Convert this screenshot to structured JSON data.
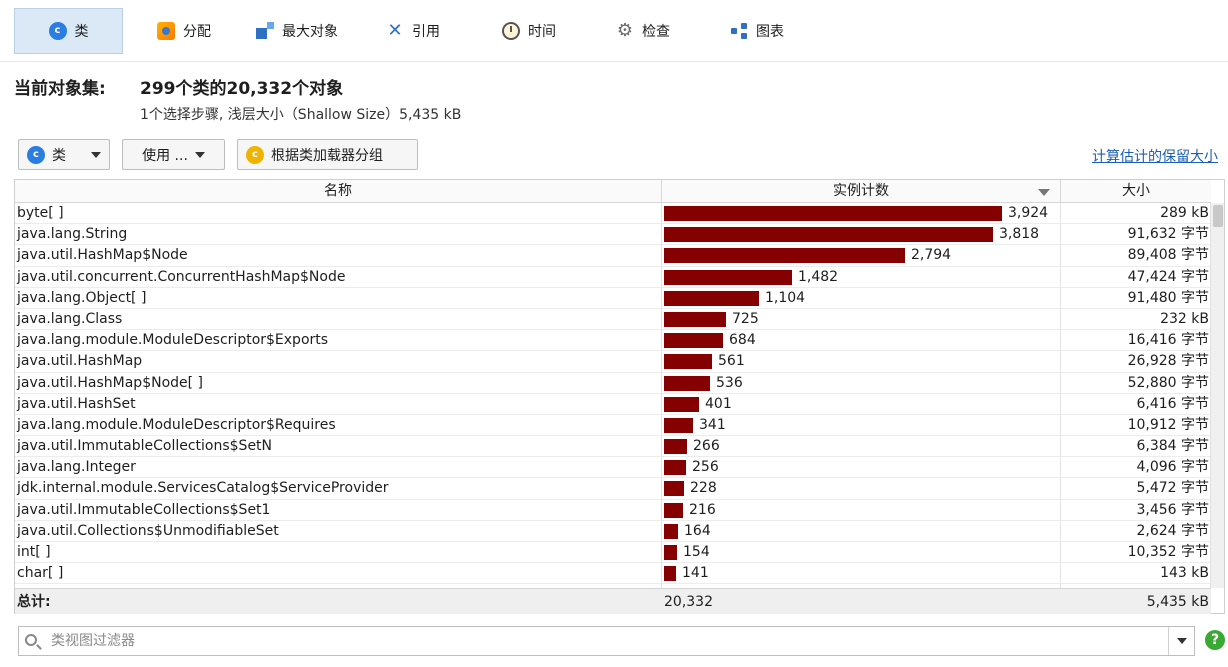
{
  "toolbar": {
    "items": [
      {
        "label": "类",
        "icon": "class-icon"
      },
      {
        "label": "分配",
        "icon": "allocation-icon"
      },
      {
        "label": "最大对象",
        "icon": "biggest-objects-icon"
      },
      {
        "label": "引用",
        "icon": "references-icon"
      },
      {
        "label": "时间",
        "icon": "clock-icon"
      },
      {
        "label": "检查",
        "icon": "gear-icon"
      },
      {
        "label": "图表",
        "icon": "graph-icon"
      }
    ],
    "active": "类"
  },
  "summary": {
    "label": "当前对象集:",
    "value": "299个类的20,332个对象",
    "sub": "1个选择步骤, 浅层大小（Shallow Size）5,435 kB"
  },
  "controls": {
    "view_select": "类",
    "use_button": "使用 ...",
    "group_button": "根据类加载器分组",
    "compute_link": "计算估计的保留大小"
  },
  "table": {
    "columns": [
      "名称",
      "实例计数",
      "大小"
    ],
    "sort_column": "实例计数",
    "sort_direction": "desc",
    "max_count": 3924,
    "rows": [
      {
        "name": "byte[ ]",
        "count": 3924,
        "count_text": "3,924",
        "size": "289 kB"
      },
      {
        "name": "java.lang.String",
        "count": 3818,
        "count_text": "3,818",
        "size": "91,632 字节"
      },
      {
        "name": "java.util.HashMap$Node",
        "count": 2794,
        "count_text": "2,794",
        "size": "89,408 字节"
      },
      {
        "name": "java.util.concurrent.ConcurrentHashMap$Node",
        "count": 1482,
        "count_text": "1,482",
        "size": "47,424 字节"
      },
      {
        "name": "java.lang.Object[ ]",
        "count": 1104,
        "count_text": "1,104",
        "size": "91,480 字节"
      },
      {
        "name": "java.lang.Class",
        "count": 725,
        "count_text": "725",
        "size": "232 kB"
      },
      {
        "name": "java.lang.module.ModuleDescriptor$Exports",
        "count": 684,
        "count_text": "684",
        "size": "16,416 字节"
      },
      {
        "name": "java.util.HashMap",
        "count": 561,
        "count_text": "561",
        "size": "26,928 字节"
      },
      {
        "name": "java.util.HashMap$Node[ ]",
        "count": 536,
        "count_text": "536",
        "size": "52,880 字节"
      },
      {
        "name": "java.util.HashSet",
        "count": 401,
        "count_text": "401",
        "size": "6,416 字节"
      },
      {
        "name": "java.lang.module.ModuleDescriptor$Requires",
        "count": 341,
        "count_text": "341",
        "size": "10,912 字节"
      },
      {
        "name": "java.util.ImmutableCollections$SetN",
        "count": 266,
        "count_text": "266",
        "size": "6,384 字节"
      },
      {
        "name": "java.lang.Integer",
        "count": 256,
        "count_text": "256",
        "size": "4,096 字节"
      },
      {
        "name": "jdk.internal.module.ServicesCatalog$ServiceProvider",
        "count": 228,
        "count_text": "228",
        "size": "5,472 字节"
      },
      {
        "name": "java.util.ImmutableCollections$Set1",
        "count": 216,
        "count_text": "216",
        "size": "3,456 字节"
      },
      {
        "name": "java.util.Collections$UnmodifiableSet",
        "count": 164,
        "count_text": "164",
        "size": "2,624 字节"
      },
      {
        "name": "int[ ]",
        "count": 154,
        "count_text": "154",
        "size": "10,352 字节"
      },
      {
        "name": "char[ ]",
        "count": 141,
        "count_text": "141",
        "size": "143 kB"
      }
    ],
    "total": {
      "label": "总计:",
      "count": "20,332",
      "size": "5,435 kB"
    },
    "bar_color": "#850000"
  },
  "filter": {
    "placeholder": "类视图过滤器"
  }
}
